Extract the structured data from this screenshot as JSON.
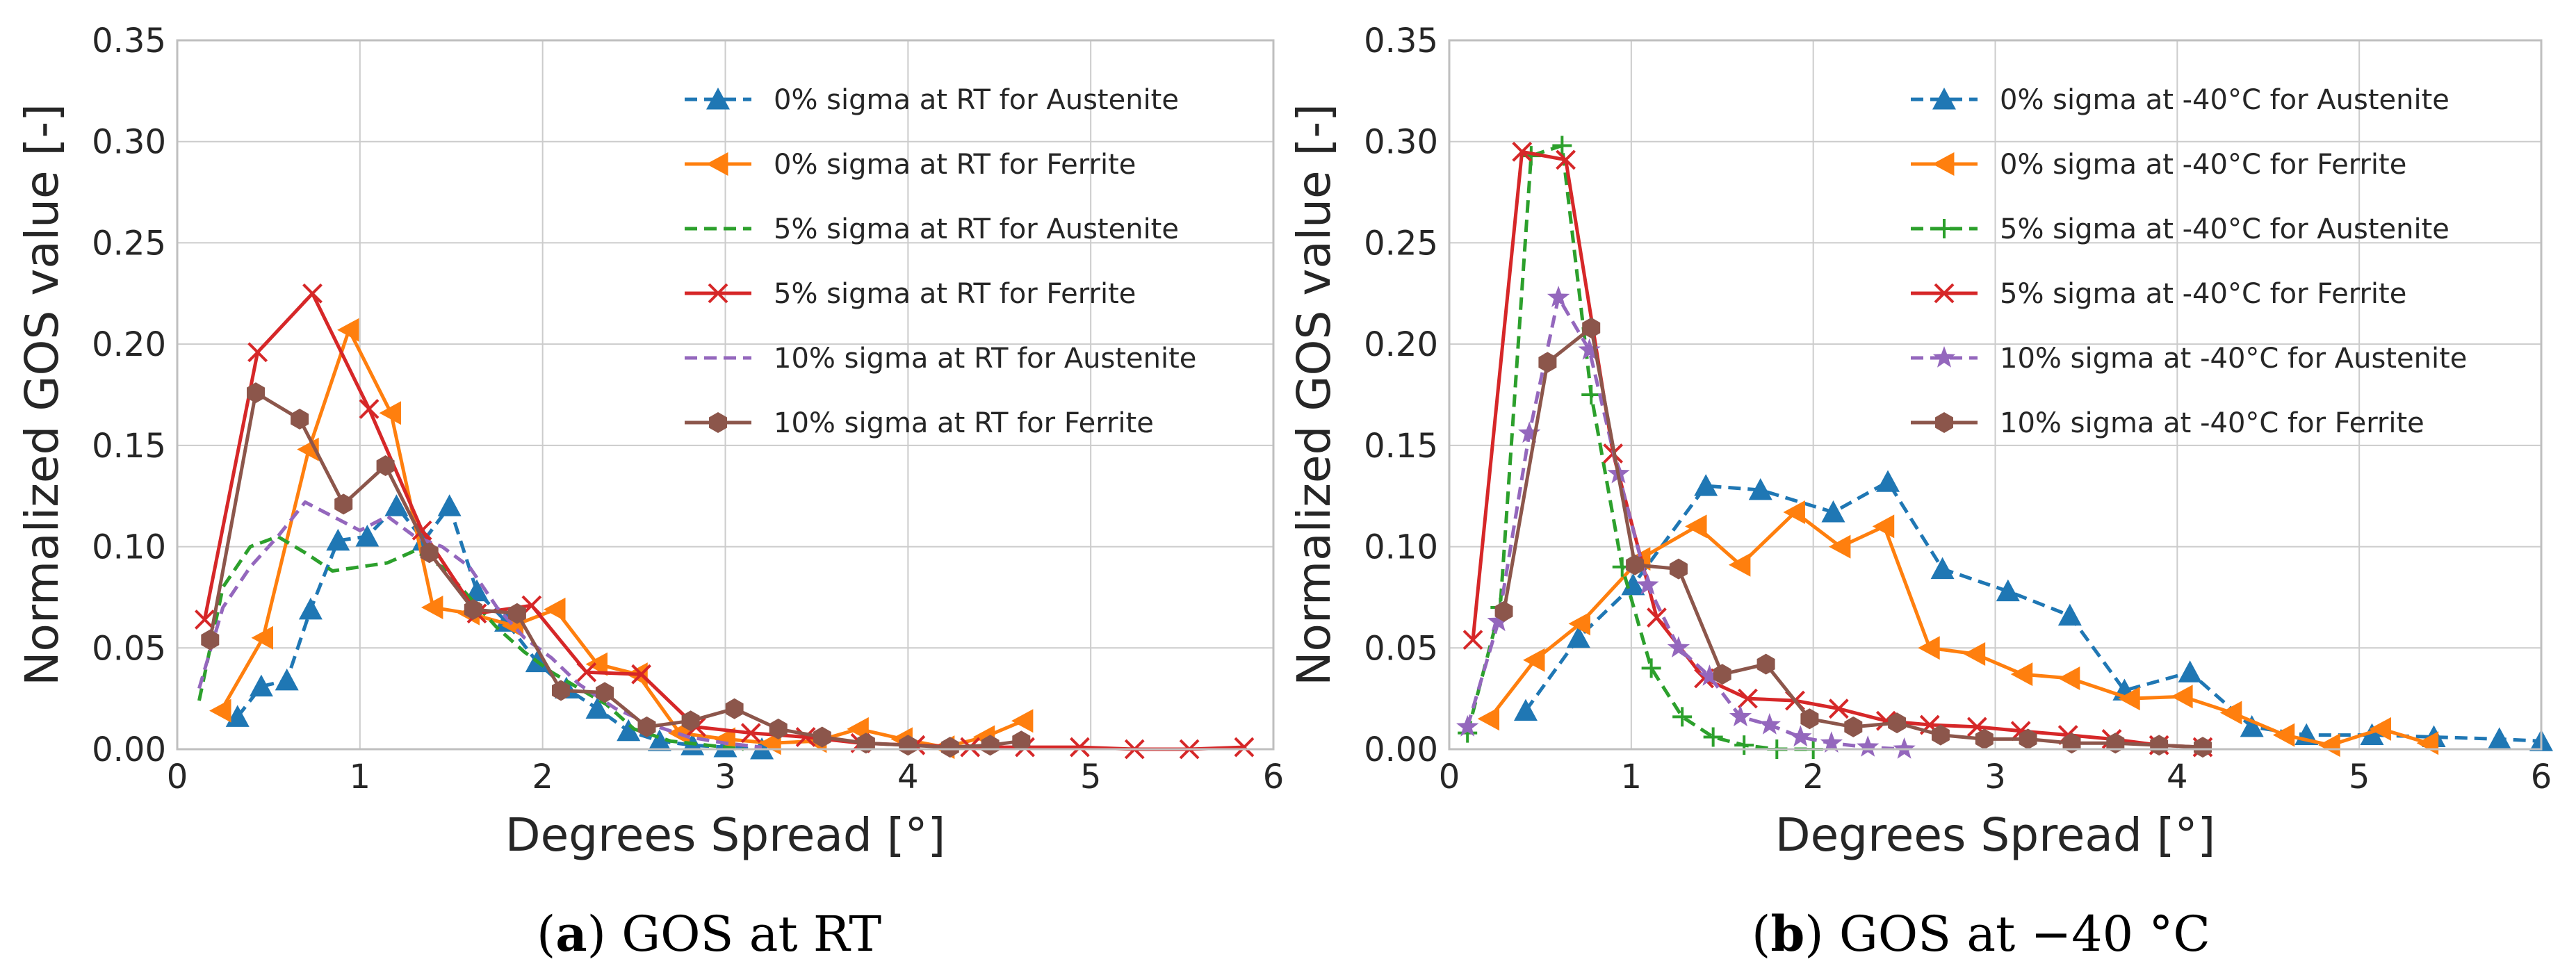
{
  "chart_data": [
    {
      "type": "line",
      "caption_tag": "a",
      "caption_text": "GOS at RT",
      "xlabel": "Degrees Spread [°]",
      "ylabel": "Normalized GOS value [-]",
      "xlim": [
        0,
        6
      ],
      "ylim": [
        0,
        0.35
      ],
      "xticks": [
        "0",
        "1",
        "2",
        "3",
        "4",
        "5",
        "6"
      ],
      "yticks": [
        "0.00",
        "0.05",
        "0.10",
        "0.15",
        "0.20",
        "0.25",
        "0.30",
        "0.35"
      ],
      "grid": true,
      "legend_position": "top-right",
      "series": [
        {
          "name": "0% sigma at RT for Austenite",
          "color": "#1f77b4",
          "dash": "dashed",
          "marker": "triangle-up",
          "x": [
            0.33,
            0.46,
            0.6,
            0.73,
            0.88,
            1.04,
            1.2,
            1.35,
            1.49,
            1.64,
            1.8,
            1.97,
            2.13,
            2.3,
            2.47,
            2.64,
            2.82,
            3.0,
            3.2
          ],
          "y": [
            0.016,
            0.031,
            0.034,
            0.069,
            0.103,
            0.105,
            0.12,
            0.103,
            0.12,
            0.078,
            0.063,
            0.043,
            0.03,
            0.02,
            0.009,
            0.004,
            0.002,
            0.001,
            0.0
          ]
        },
        {
          "name": "0% sigma at RT for Ferrite",
          "color": "#ff7f0e",
          "dash": "solid",
          "marker": "triangle-left",
          "x": [
            0.24,
            0.47,
            0.72,
            0.94,
            1.17,
            1.4,
            1.6,
            1.84,
            2.07,
            2.3,
            2.52,
            2.75,
            3.0,
            3.25,
            3.5,
            3.73,
            3.97,
            4.2,
            4.42,
            4.63
          ],
          "y": [
            0.019,
            0.055,
            0.148,
            0.207,
            0.166,
            0.07,
            0.067,
            0.061,
            0.069,
            0.042,
            0.037,
            0.008,
            0.005,
            0.003,
            0.004,
            0.01,
            0.005,
            0.001,
            0.006,
            0.014
          ]
        },
        {
          "name": "5% sigma at RT for Austenite",
          "color": "#2ca02c",
          "dash": "dashed",
          "marker": "none",
          "x": [
            0.12,
            0.25,
            0.4,
            0.55,
            0.7,
            0.85,
            1.0,
            1.15,
            1.3,
            1.45,
            1.6,
            1.75,
            1.9,
            2.05,
            2.2,
            2.35,
            2.5,
            2.7,
            2.9,
            3.1
          ],
          "y": [
            0.024,
            0.08,
            0.1,
            0.105,
            0.097,
            0.088,
            0.09,
            0.092,
            0.098,
            0.09,
            0.075,
            0.06,
            0.048,
            0.038,
            0.03,
            0.022,
            0.01,
            0.004,
            0.002,
            0.0
          ]
        },
        {
          "name": "5% sigma at RT for Ferrite",
          "color": "#d62728",
          "dash": "solid",
          "marker": "x",
          "x": [
            0.15,
            0.44,
            0.74,
            1.05,
            1.34,
            1.64,
            1.94,
            2.24,
            2.54,
            2.84,
            3.14,
            3.44,
            3.74,
            4.04,
            4.34,
            4.64,
            4.94,
            5.24,
            5.54,
            5.84
          ],
          "y": [
            0.064,
            0.196,
            0.225,
            0.168,
            0.108,
            0.067,
            0.071,
            0.038,
            0.037,
            0.011,
            0.008,
            0.006,
            0.003,
            0.002,
            0.001,
            0.001,
            0.001,
            0.0,
            0.0,
            0.001
          ]
        },
        {
          "name": "10% sigma at RT for Austenite",
          "color": "#9467bd",
          "dash": "dashed",
          "marker": "none",
          "x": [
            0.12,
            0.25,
            0.4,
            0.55,
            0.7,
            0.85,
            1.0,
            1.15,
            1.3,
            1.45,
            1.6,
            1.75,
            1.9,
            2.05,
            2.2,
            2.4,
            2.6,
            2.8,
            3.0,
            3.2
          ],
          "y": [
            0.03,
            0.07,
            0.09,
            0.105,
            0.122,
            0.115,
            0.108,
            0.115,
            0.105,
            0.1,
            0.09,
            0.07,
            0.055,
            0.045,
            0.032,
            0.02,
            0.012,
            0.006,
            0.003,
            0.001
          ]
        },
        {
          "name": "10% sigma at RT for Ferrite",
          "color": "#8c564b",
          "dash": "solid",
          "marker": "hexagon",
          "x": [
            0.18,
            0.43,
            0.67,
            0.91,
            1.14,
            1.38,
            1.62,
            1.86,
            2.1,
            2.34,
            2.57,
            2.81,
            3.05,
            3.29,
            3.53,
            3.77,
            4.0,
            4.23,
            4.45,
            4.62
          ],
          "y": [
            0.054,
            0.176,
            0.163,
            0.121,
            0.14,
            0.097,
            0.069,
            0.067,
            0.029,
            0.028,
            0.011,
            0.014,
            0.02,
            0.01,
            0.006,
            0.003,
            0.002,
            0.001,
            0.002,
            0.004
          ]
        }
      ]
    },
    {
      "type": "line",
      "caption_tag": "b",
      "caption_text": "GOS at −40 °C",
      "xlabel": "Degrees Spread [°]",
      "ylabel": "Normalized GOS value [-]",
      "xlim": [
        0,
        6
      ],
      "ylim": [
        0,
        0.35
      ],
      "xticks": [
        "0",
        "1",
        "2",
        "3",
        "4",
        "5",
        "6"
      ],
      "yticks": [
        "0.00",
        "0.05",
        "0.10",
        "0.15",
        "0.20",
        "0.25",
        "0.30",
        "0.35"
      ],
      "grid": true,
      "legend_position": "top-right",
      "series": [
        {
          "name": "0% sigma at -40°C for Austenite",
          "color": "#1f77b4",
          "dash": "dashed",
          "marker": "triangle-up",
          "x": [
            0.42,
            0.71,
            1.01,
            1.41,
            1.71,
            2.11,
            2.41,
            2.71,
            3.07,
            3.41,
            3.71,
            4.07,
            4.41,
            4.71,
            5.07,
            5.41,
            5.77,
            6.0
          ],
          "y": [
            0.019,
            0.055,
            0.081,
            0.13,
            0.128,
            0.117,
            0.132,
            0.089,
            0.078,
            0.066,
            0.029,
            0.038,
            0.011,
            0.007,
            0.007,
            0.006,
            0.005,
            0.004
          ]
        },
        {
          "name": "0% sigma at -40°C for Ferrite",
          "color": "#ff7f0e",
          "dash": "solid",
          "marker": "triangle-left",
          "x": [
            0.22,
            0.47,
            0.72,
            1.05,
            1.36,
            1.6,
            1.9,
            2.15,
            2.39,
            2.64,
            2.89,
            3.15,
            3.41,
            3.74,
            4.03,
            4.3,
            4.59,
            4.84,
            5.12,
            5.38
          ],
          "y": [
            0.015,
            0.044,
            0.062,
            0.094,
            0.11,
            0.091,
            0.117,
            0.1,
            0.11,
            0.05,
            0.047,
            0.037,
            0.035,
            0.025,
            0.026,
            0.018,
            0.007,
            0.002,
            0.01,
            0.003
          ]
        },
        {
          "name": "5% sigma at -40°C for Austenite",
          "color": "#2ca02c",
          "dash": "dashed",
          "marker": "plus",
          "x": [
            0.1,
            0.28,
            0.45,
            0.62,
            0.78,
            0.95,
            1.11,
            1.28,
            1.45,
            1.62,
            1.8,
            2.0
          ],
          "y": [
            0.008,
            0.07,
            0.293,
            0.298,
            0.175,
            0.09,
            0.04,
            0.016,
            0.006,
            0.002,
            0.0,
            0.0
          ]
        },
        {
          "name": "5% sigma at -40°C for Ferrite",
          "color": "#d62728",
          "dash": "solid",
          "marker": "x",
          "x": [
            0.13,
            0.4,
            0.64,
            0.9,
            1.14,
            1.4,
            1.64,
            1.9,
            2.14,
            2.4,
            2.64,
            2.9,
            3.14,
            3.4,
            3.64,
            3.9,
            4.14
          ],
          "y": [
            0.054,
            0.295,
            0.291,
            0.146,
            0.065,
            0.035,
            0.025,
            0.024,
            0.02,
            0.014,
            0.012,
            0.011,
            0.009,
            0.007,
            0.005,
            0.002,
            0.001
          ]
        },
        {
          "name": "10% sigma at -40°C for Austenite",
          "color": "#9467bd",
          "dash": "dashed",
          "marker": "star",
          "x": [
            0.1,
            0.27,
            0.44,
            0.6,
            0.77,
            0.93,
            1.09,
            1.26,
            1.43,
            1.6,
            1.76,
            1.93,
            2.1,
            2.3,
            2.5
          ],
          "y": [
            0.011,
            0.063,
            0.156,
            0.223,
            0.197,
            0.136,
            0.081,
            0.05,
            0.036,
            0.016,
            0.012,
            0.006,
            0.003,
            0.001,
            0.0
          ]
        },
        {
          "name": "10% sigma at -40°C for Ferrite",
          "color": "#8c564b",
          "dash": "solid",
          "marker": "hexagon",
          "x": [
            0.3,
            0.54,
            0.78,
            1.02,
            1.26,
            1.5,
            1.74,
            1.98,
            2.22,
            2.46,
            2.7,
            2.94,
            3.18,
            3.42,
            3.66,
            3.9,
            4.14
          ],
          "y": [
            0.068,
            0.191,
            0.208,
            0.091,
            0.089,
            0.037,
            0.042,
            0.015,
            0.011,
            0.013,
            0.007,
            0.005,
            0.005,
            0.003,
            0.003,
            0.002,
            0.001
          ]
        }
      ]
    }
  ]
}
